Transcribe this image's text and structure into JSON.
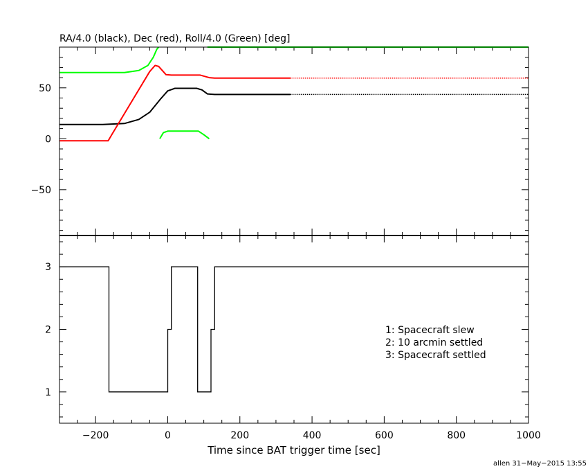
{
  "chart_data": [
    {
      "type": "line",
      "title": "RA/4.0 (black), Dec (red), Roll/4.0 (Green) [deg]",
      "xlim": [
        -300,
        1000
      ],
      "ylim": [
        -95,
        90
      ],
      "yticks": [
        -50,
        0,
        50
      ],
      "yticks_labels": [
        "−50",
        "0",
        "50"
      ],
      "series": [
        {
          "color": "#000000",
          "solid": [
            [
              -300,
              14
            ],
            [
              -180,
              14
            ],
            [
              -120,
              15
            ],
            [
              -80,
              19
            ],
            [
              -50,
              26
            ],
            [
              -20,
              39
            ],
            [
              0,
              47
            ],
            [
              20,
              49.5
            ],
            [
              80,
              49.5
            ],
            [
              95,
              48
            ],
            [
              110,
              44
            ],
            [
              130,
              43.5
            ],
            [
              340,
              43.5
            ]
          ],
          "dotted": [
            [
              340,
              43.5
            ],
            [
              1000,
              43.5
            ]
          ]
        },
        {
          "color": "#ff0000",
          "solid": [
            [
              -300,
              -2
            ],
            [
              -165,
              -2
            ],
            [
              -155,
              4
            ],
            [
              -50,
              66
            ],
            [
              -35,
              72
            ],
            [
              -25,
              71
            ],
            [
              -5,
              63
            ],
            [
              10,
              62.5
            ],
            [
              90,
              62.5
            ],
            [
              115,
              60
            ],
            [
              130,
              59.5
            ],
            [
              340,
              59.5
            ]
          ],
          "dotted": [
            [
              340,
              59.5
            ],
            [
              1000,
              59.5
            ]
          ]
        },
        {
          "color": "#00ff00",
          "solid": [
            [
              -300,
              65
            ],
            [
              -120,
              65
            ],
            [
              -80,
              67
            ],
            [
              -55,
              72
            ],
            [
              -40,
              80
            ],
            [
              -30,
              88
            ],
            [
              -25,
              90
            ]
          ],
          "dotted": []
        },
        {
          "color": "#00ff00",
          "solid": [
            [
              110,
              90
            ],
            [
              1000,
              90
            ]
          ],
          "dotted": []
        },
        {
          "color": "#00ff00",
          "solid": [
            [
              -22,
              0
            ],
            [
              -12,
              6
            ],
            [
              0,
              7.5
            ],
            [
              85,
              7.5
            ],
            [
              100,
              4
            ],
            [
              115,
              0
            ]
          ],
          "dotted": []
        }
      ]
    },
    {
      "type": "line",
      "xlabel": "Time since BAT trigger time [sec]",
      "xlim": [
        -300,
        1000
      ],
      "ylim": [
        0.5,
        3.5
      ],
      "xticks": [
        -200,
        0,
        200,
        400,
        600,
        800,
        1000
      ],
      "xticks_labels": [
        "−200",
        "0",
        "200",
        "400",
        "600",
        "800",
        "1000"
      ],
      "yticks": [
        1,
        2,
        3
      ],
      "yticks_labels": [
        "1",
        "2",
        "3"
      ],
      "series": [
        {
          "color": "#000000",
          "step": [
            [
              -300,
              3
            ],
            [
              -163,
              3
            ],
            [
              -163,
              1
            ],
            [
              0,
              1
            ],
            [
              0,
              2
            ],
            [
              10,
              2
            ],
            [
              10,
              3
            ],
            [
              83,
              3
            ],
            [
              83,
              1
            ],
            [
              120,
              1
            ],
            [
              120,
              2
            ],
            [
              130,
              2
            ],
            [
              130,
              3
            ],
            [
              1000,
              3
            ]
          ]
        }
      ],
      "legend": {
        "placement": "center-right",
        "entries": [
          "1: Spacecraft slew",
          "2: 10 arcmin settled",
          "3: Spacecraft settled"
        ]
      }
    }
  ],
  "footer": "allen 31−May−2015 13:55"
}
